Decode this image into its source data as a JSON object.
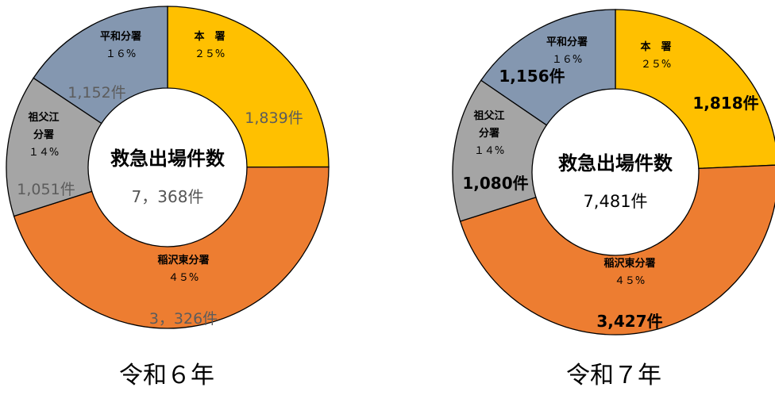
{
  "colors": {
    "honsho": "#FFC000",
    "inazawa": "#ED7D31",
    "iyakei": "#A5A5A5",
    "heiwa": "#8497B0",
    "border": "#000000",
    "center": "#FFFFFF"
  },
  "chart_data": [
    {
      "type": "pie",
      "year_label": "令和６年",
      "center_title": "救急出場件数",
      "center_total": "7，368件",
      "series": [
        {
          "key": "honsho",
          "name_lines": [
            "本　署"
          ],
          "pct_label": "２５%",
          "count_label": "1,839件",
          "value": 1839
        },
        {
          "key": "inazawa",
          "name_lines": [
            "稲沢東分署"
          ],
          "pct_label": "４５%",
          "count_label": "3，326件",
          "value": 3326
        },
        {
          "key": "iyakei",
          "name_lines": [
            "祖父江",
            "分署"
          ],
          "pct_label": "１４%",
          "count_label": "1,051件",
          "value": 1051
        },
        {
          "key": "heiwa",
          "name_lines": [
            "平和分署"
          ],
          "pct_label": "１６%",
          "count_label": "1,152件",
          "value": 1152
        }
      ]
    },
    {
      "type": "pie",
      "year_label": "令和７年",
      "center_title": "救急出場件数",
      "center_total": "7,481件",
      "series": [
        {
          "key": "honsho",
          "name_lines": [
            "本　署"
          ],
          "pct_label": "２５%",
          "count_label": "1,818件",
          "value": 1818
        },
        {
          "key": "inazawa",
          "name_lines": [
            "稲沢東分署"
          ],
          "pct_label": "４５%",
          "count_label": "3,427件",
          "value": 3427
        },
        {
          "key": "iyakei",
          "name_lines": [
            "祖父江",
            "分署"
          ],
          "pct_label": "１４%",
          "count_label": "1,080件",
          "value": 1080
        },
        {
          "key": "heiwa",
          "name_lines": [
            "平和分署"
          ],
          "pct_label": "１６%",
          "count_label": "1,156件",
          "value": 1156
        }
      ]
    }
  ]
}
